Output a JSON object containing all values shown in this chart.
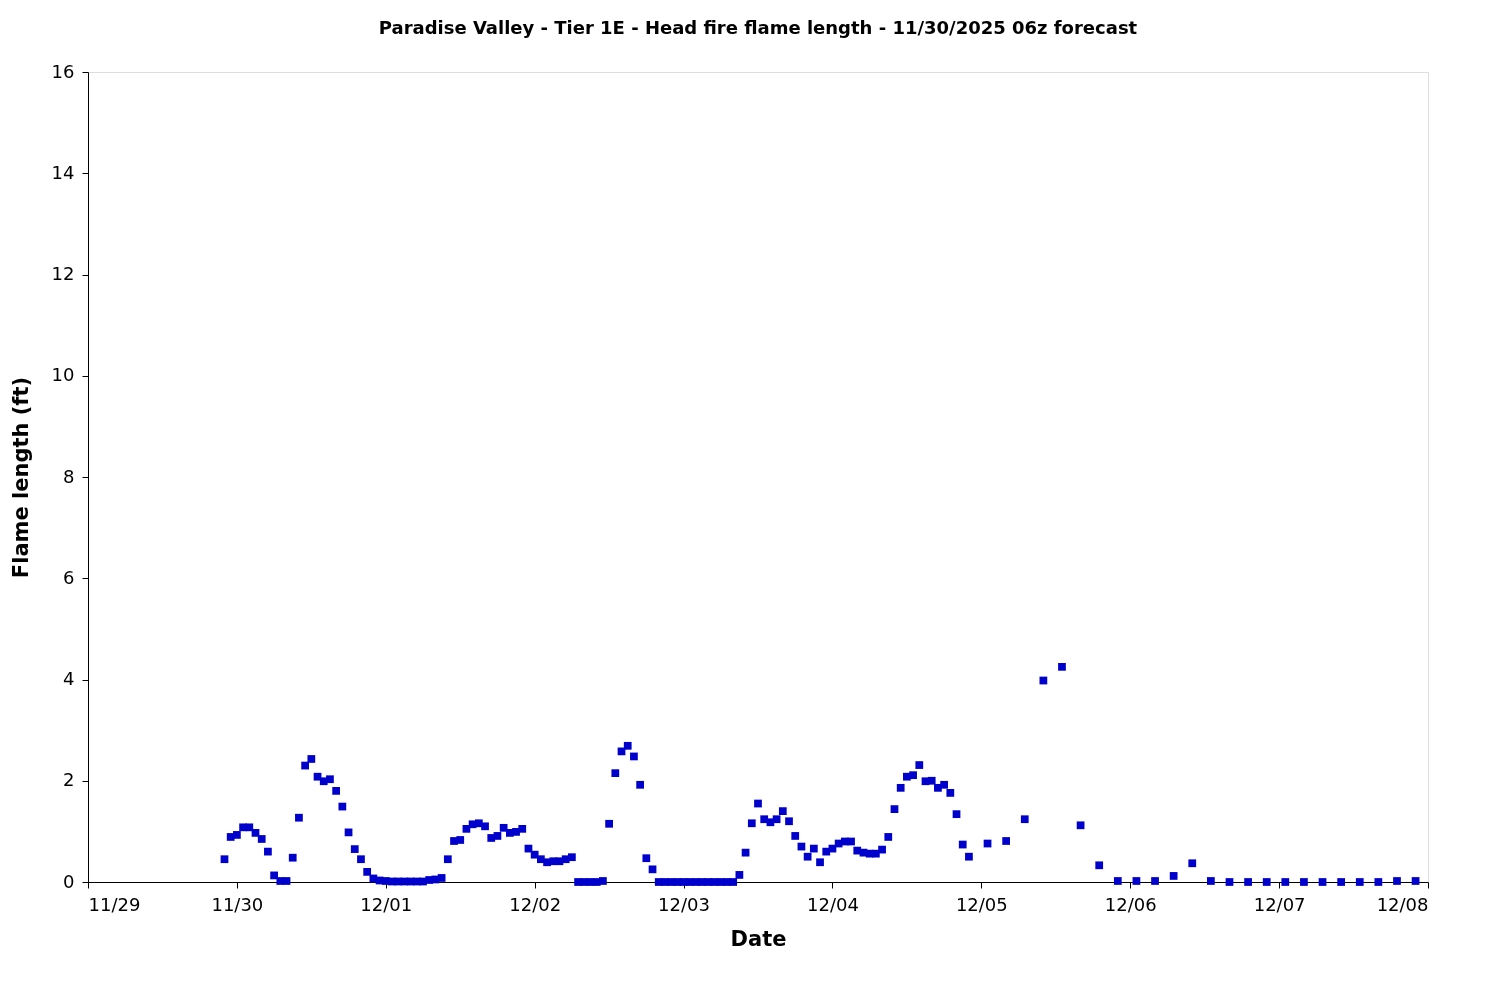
{
  "chart_data": {
    "type": "scatter",
    "title": "Paradise Valley - Tier 1E - Head fire flame length - 11/30/2025 06z forecast",
    "xlabel": "Date",
    "ylabel": "Flame length (ft)",
    "marker": "square",
    "grid": false,
    "x": [
      "2025-11-29T22:00",
      "2025-11-29T23:00",
      "2025-11-30T00:00",
      "2025-11-30T01:00",
      "2025-11-30T02:00",
      "2025-11-30T03:00",
      "2025-11-30T04:00",
      "2025-11-30T05:00",
      "2025-11-30T06:00",
      "2025-11-30T07:00",
      "2025-11-30T08:00",
      "2025-11-30T09:00",
      "2025-11-30T10:00",
      "2025-11-30T11:00",
      "2025-11-30T12:00",
      "2025-11-30T13:00",
      "2025-11-30T14:00",
      "2025-11-30T15:00",
      "2025-11-30T16:00",
      "2025-11-30T17:00",
      "2025-11-30T18:00",
      "2025-11-30T19:00",
      "2025-11-30T20:00",
      "2025-11-30T21:00",
      "2025-11-30T22:00",
      "2025-11-30T23:00",
      "2025-12-01T00:00",
      "2025-12-01T01:00",
      "2025-12-01T02:00",
      "2025-12-01T03:00",
      "2025-12-01T04:00",
      "2025-12-01T05:00",
      "2025-12-01T06:00",
      "2025-12-01T07:00",
      "2025-12-01T08:00",
      "2025-12-01T09:00",
      "2025-12-01T10:00",
      "2025-12-01T11:00",
      "2025-12-01T12:00",
      "2025-12-01T13:00",
      "2025-12-01T14:00",
      "2025-12-01T15:00",
      "2025-12-01T16:00",
      "2025-12-01T17:00",
      "2025-12-01T18:00",
      "2025-12-01T19:00",
      "2025-12-01T20:00",
      "2025-12-01T21:00",
      "2025-12-01T22:00",
      "2025-12-01T23:00",
      "2025-12-02T00:00",
      "2025-12-02T01:00",
      "2025-12-02T02:00",
      "2025-12-02T03:00",
      "2025-12-02T04:00",
      "2025-12-02T05:00",
      "2025-12-02T06:00",
      "2025-12-02T07:00",
      "2025-12-02T08:00",
      "2025-12-02T09:00",
      "2025-12-02T10:00",
      "2025-12-02T11:00",
      "2025-12-02T12:00",
      "2025-12-02T13:00",
      "2025-12-02T14:00",
      "2025-12-02T15:00",
      "2025-12-02T16:00",
      "2025-12-02T17:00",
      "2025-12-02T18:00",
      "2025-12-02T19:00",
      "2025-12-02T20:00",
      "2025-12-02T21:00",
      "2025-12-02T22:00",
      "2025-12-02T23:00",
      "2025-12-03T00:00",
      "2025-12-03T01:00",
      "2025-12-03T02:00",
      "2025-12-03T03:00",
      "2025-12-03T04:00",
      "2025-12-03T05:00",
      "2025-12-03T06:00",
      "2025-12-03T07:00",
      "2025-12-03T08:00",
      "2025-12-03T09:00",
      "2025-12-03T10:00",
      "2025-12-03T11:00",
      "2025-12-03T12:00",
      "2025-12-03T13:00",
      "2025-12-03T14:00",
      "2025-12-03T15:00",
      "2025-12-03T16:00",
      "2025-12-03T17:00",
      "2025-12-03T18:00",
      "2025-12-03T19:00",
      "2025-12-03T20:00",
      "2025-12-03T21:00",
      "2025-12-03T22:00",
      "2025-12-03T23:00",
      "2025-12-04T00:00",
      "2025-12-04T01:00",
      "2025-12-04T02:00",
      "2025-12-04T03:00",
      "2025-12-04T04:00",
      "2025-12-04T05:00",
      "2025-12-04T06:00",
      "2025-12-04T07:00",
      "2025-12-04T08:00",
      "2025-12-04T09:00",
      "2025-12-04T10:00",
      "2025-12-04T11:00",
      "2025-12-04T12:00",
      "2025-12-04T13:00",
      "2025-12-04T14:00",
      "2025-12-04T15:00",
      "2025-12-04T16:00",
      "2025-12-04T17:00",
      "2025-12-04T18:00",
      "2025-12-04T19:00",
      "2025-12-04T20:00",
      "2025-12-04T21:00",
      "2025-12-04T22:00",
      "2025-12-05T01:00",
      "2025-12-05T04:00",
      "2025-12-05T07:00",
      "2025-12-05T10:00",
      "2025-12-05T13:00",
      "2025-12-05T16:00",
      "2025-12-05T19:00",
      "2025-12-05T22:00",
      "2025-12-06T01:00",
      "2025-12-06T04:00",
      "2025-12-06T07:00",
      "2025-12-06T10:00",
      "2025-12-06T13:00",
      "2025-12-06T16:00",
      "2025-12-06T19:00",
      "2025-12-06T22:00",
      "2025-12-07T01:00",
      "2025-12-07T04:00",
      "2025-12-07T07:00",
      "2025-12-07T10:00",
      "2025-12-07T13:00",
      "2025-12-07T16:00",
      "2025-12-07T19:00",
      "2025-12-07T22:00"
    ],
    "series": [
      {
        "color": "#0000cc",
        "values": [
          0.45,
          0.89,
          0.93,
          1.08,
          1.08,
          0.97,
          0.85,
          0.6,
          0.13,
          0.02,
          0.02,
          0.48,
          1.27,
          2.3,
          2.43,
          2.08,
          1.99,
          2.03,
          1.8,
          1.49,
          0.98,
          0.65,
          0.45,
          0.2,
          0.07,
          0.03,
          0.02,
          0.01,
          0.01,
          0.01,
          0.01,
          0.01,
          0.01,
          0.04,
          0.05,
          0.08,
          0.45,
          0.81,
          0.83,
          1.05,
          1.14,
          1.16,
          1.1,
          0.87,
          0.91,
          1.07,
          0.97,
          0.99,
          1.05,
          0.66,
          0.54,
          0.45,
          0.39,
          0.41,
          0.41,
          0.45,
          0.49,
          0.0,
          0.0,
          0.0,
          0.0,
          0.02,
          1.15,
          2.15,
          2.58,
          2.69,
          2.48,
          1.92,
          0.47,
          0.25,
          0.0,
          0.0,
          0.0,
          0.0,
          0.0,
          0.0,
          0.0,
          0.0,
          0.0,
          0.0,
          0.0,
          0.0,
          0.0,
          0.14,
          0.58,
          1.16,
          1.55,
          1.24,
          1.18,
          1.24,
          1.4,
          1.2,
          0.91,
          0.7,
          0.5,
          0.66,
          0.39,
          0.6,
          0.66,
          0.76,
          0.8,
          0.8,
          0.62,
          0.58,
          0.56,
          0.56,
          0.64,
          0.89,
          1.44,
          1.86,
          2.08,
          2.11,
          2.31,
          1.99,
          2.0,
          1.86,
          1.92,
          1.76,
          1.34,
          0.74,
          0.5,
          0.76,
          0.81,
          1.24,
          3.98,
          4.25,
          1.12,
          0.33,
          0.02,
          0.02,
          0.02,
          0.12,
          0.37,
          0.02,
          0.0,
          0.0,
          0.0,
          0.0,
          0.0,
          0.0,
          0.0,
          0.0,
          0.0,
          0.02,
          0.02
        ]
      }
    ],
    "xlim": [
      "2025-11-29",
      "2025-12-08"
    ],
    "xticks": [
      {
        "value": "2025-11-29",
        "label": "11/29"
      },
      {
        "value": "2025-11-30",
        "label": "11/30"
      },
      {
        "value": "2025-12-01",
        "label": "12/01"
      },
      {
        "value": "2025-12-02",
        "label": "12/02"
      },
      {
        "value": "2025-12-03",
        "label": "12/03"
      },
      {
        "value": "2025-12-04",
        "label": "12/04"
      },
      {
        "value": "2025-12-05",
        "label": "12/05"
      },
      {
        "value": "2025-12-06",
        "label": "12/06"
      },
      {
        "value": "2025-12-07",
        "label": "12/07"
      },
      {
        "value": "2025-12-08",
        "label": "12/08"
      }
    ],
    "ylim": [
      0,
      16
    ],
    "yticks": [
      0,
      2,
      4,
      6,
      8,
      10,
      12,
      14,
      16
    ]
  }
}
